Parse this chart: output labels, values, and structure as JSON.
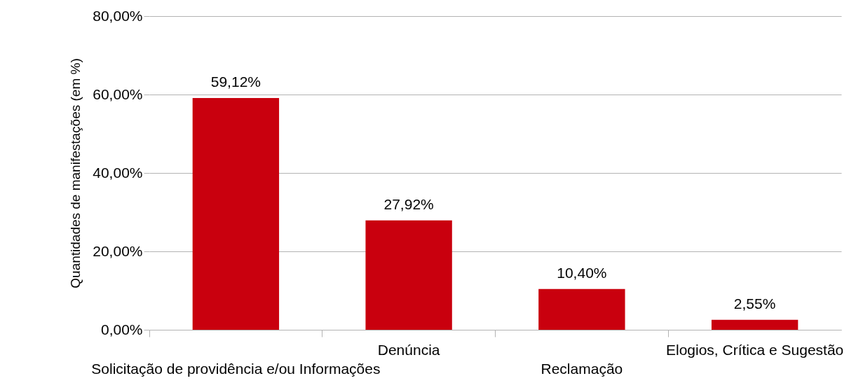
{
  "chart_data": {
    "type": "bar",
    "ylabel": "Quantidades de manifestações (em %)",
    "categories": [
      "Solicitação de providência e/ou Informações",
      "Denúncia",
      "Reclamação",
      "Elogios, Crítica e Sugestão"
    ],
    "values": [
      59.12,
      27.92,
      10.4,
      2.55
    ],
    "color": "#c9000e",
    "value_labels": [
      "59,12%",
      "27,92%",
      "10,40%",
      "2,55%"
    ],
    "ylim": [
      0,
      80
    ],
    "yticks": [
      {
        "value": 0,
        "label": "0,00%"
      },
      {
        "value": 20,
        "label": "20,00%"
      },
      {
        "value": 40,
        "label": "40,00%"
      },
      {
        "value": 60,
        "label": "60,00%"
      },
      {
        "value": 80,
        "label": "80,00%"
      }
    ],
    "grid": "y"
  }
}
